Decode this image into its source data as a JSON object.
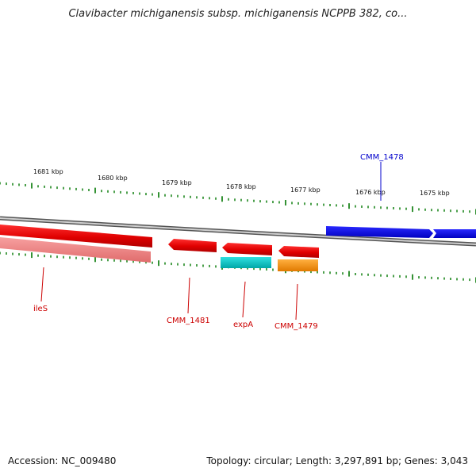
{
  "title": "Clavibacter michiganensis subsp. michiganensis NCPPB 382, co...",
  "footer": {
    "accession": "Accession: NC_009480",
    "summary": "Topology: circular; Length: 3,297,891 bp; Genes: 3,043"
  },
  "colors": {
    "forward_gene": "#0000ee",
    "reverse_gene": "#ee0000",
    "reverse_gene_light": "#f08080",
    "rna_gene": "#00c0c0",
    "other_gene": "#ff8c00",
    "tick": "#007700",
    "backbone": "#888888"
  },
  "ticks": [
    {
      "label": "1681 kbp"
    },
    {
      "label": "1680 kbp"
    },
    {
      "label": "1679 kbp"
    },
    {
      "label": "1678 kbp"
    },
    {
      "label": "1677 kbp"
    },
    {
      "label": "1676 kbp"
    },
    {
      "label": "1675 kbp"
    }
  ],
  "genes": [
    {
      "name": "CMM_1478",
      "strand": "forward",
      "color": "#0000ee"
    },
    {
      "name": "ileS",
      "strand": "reverse",
      "color": "#ee0000"
    },
    {
      "name": "CMM_1481",
      "strand": "reverse",
      "color": "#ee0000"
    },
    {
      "name": "expA",
      "strand": "reverse",
      "color": "#ee0000"
    },
    {
      "name": "CMM_1479",
      "strand": "reverse",
      "color": "#ee0000"
    }
  ]
}
